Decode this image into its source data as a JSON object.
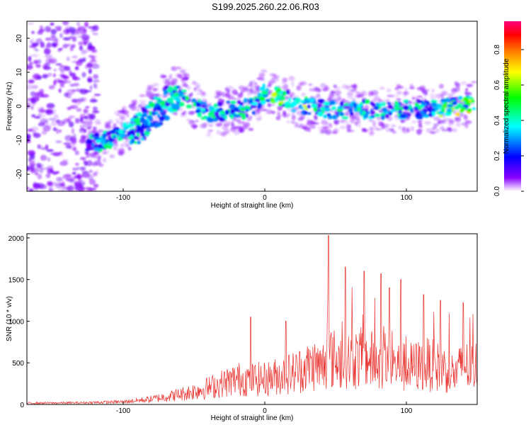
{
  "title": "S199.2025.260.22.06.R03",
  "chart_data": [
    {
      "type": "heatmap",
      "name": "spectrogram",
      "xlabel": "Height of straight line (km)",
      "ylabel": "Frequency (Hz)",
      "xlim": [
        -168,
        150
      ],
      "ylim": [
        -25,
        25
      ],
      "xticks": [
        -100,
        0,
        100
      ],
      "yticks": [
        -20,
        -10,
        0,
        10,
        20
      ],
      "colorbar": {
        "label": "Normalized spectral amplitude",
        "range": [
          0,
          0.96
        ],
        "ticks": [
          "0.0",
          "0.2",
          "0.4",
          "0.6",
          "0.8"
        ],
        "colors": [
          "#ffffff",
          "#8a00ff",
          "#0000ff",
          "#00ffff",
          "#00ff00",
          "#ffff00",
          "#ff8000",
          "#ff0000",
          "#ff0080"
        ]
      },
      "ridge": {
        "x": [
          -125,
          -110,
          -95,
          -82,
          -70,
          -60,
          -52,
          -45,
          -35,
          -25,
          -15,
          -5,
          0,
          10,
          20,
          30,
          45,
          60,
          75,
          90,
          105,
          120,
          135,
          148
        ],
        "y": [
          -11,
          -10,
          -6,
          -1,
          3,
          5,
          1,
          -1,
          -2,
          -1,
          -1,
          1,
          4,
          3,
          1,
          0,
          -1,
          -1,
          -1,
          -1,
          -1,
          -1,
          0,
          1
        ]
      },
      "lower_branch": {
        "x": [
          -95,
          -85,
          -75,
          -65,
          -56
        ],
        "y": [
          -10,
          -7,
          -3,
          0,
          3
        ]
      }
    },
    {
      "type": "line",
      "name": "snr",
      "xlabel": "Height of straight line (km)",
      "ylabel": "SNR (10 * v/v)",
      "xlim": [
        -168,
        150
      ],
      "ylim": [
        0,
        2050
      ],
      "xticks": [
        -100,
        0,
        100
      ],
      "yticks": [
        0,
        500,
        1000,
        1500,
        2000
      ],
      "color": "#e8322e",
      "envelope": {
        "x": [
          -168,
          -130,
          -100,
          -80,
          -60,
          -40,
          -20,
          0,
          20,
          30,
          35,
          40,
          45,
          55,
          70,
          85,
          100,
          115,
          125,
          135,
          140,
          145,
          150
        ],
        "y": [
          20,
          25,
          40,
          80,
          150,
          250,
          380,
          380,
          480,
          560,
          600,
          550,
          700,
          650,
          700,
          600,
          550,
          600,
          550,
          450,
          600,
          550,
          580
        ]
      },
      "peaks": {
        "x": [
          -10,
          15,
          45,
          57,
          70,
          82,
          88,
          96,
          112,
          124,
          140
        ],
        "y": [
          1050,
          1000,
          2030,
          1650,
          1600,
          1570,
          1400,
          1500,
          1320,
          1250,
          1220
        ]
      }
    }
  ]
}
